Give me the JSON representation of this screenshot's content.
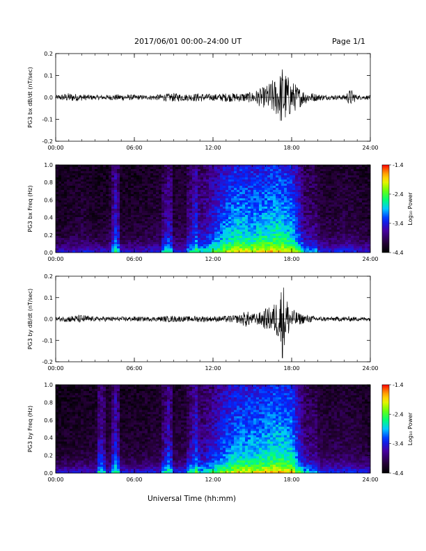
{
  "header": {
    "title": "2017/06/01   00:00–24:00 UT",
    "page": "Page 1/1"
  },
  "xaxis": {
    "title": "Universal Time (hh:mm)",
    "ticks": [
      "00:00",
      "06:00",
      "12:00",
      "18:00",
      "24:00"
    ],
    "range_hours": [
      0,
      24
    ]
  },
  "colorbar": {
    "title": "Log₁₀ Power",
    "ticks": [
      "-1.4",
      "-2.4",
      "-3.4",
      "-4.4"
    ],
    "range": [
      -4.4,
      -1.4
    ]
  },
  "chart_data": [
    {
      "type": "line",
      "name": "bx-waveform",
      "ylabel": "PG3 bx dB/dt (nT/sec)",
      "ylim": [
        -0.2,
        0.2
      ],
      "yticks": [
        "0.2",
        "0.1",
        "0.0",
        "-0.1",
        "-0.2"
      ],
      "x_hours": [
        0,
        1,
        2,
        3,
        4,
        5,
        6,
        7,
        8,
        9,
        10,
        11,
        12,
        13,
        14,
        15,
        15.5,
        16,
        16.5,
        17,
        17.3,
        17.5,
        17.7,
        18,
        18.5,
        19,
        20,
        21,
        22,
        22.5,
        23,
        24
      ],
      "amplitude_envelope": [
        0.01,
        0.02,
        0.015,
        0.01,
        0.012,
        0.015,
        0.012,
        0.01,
        0.015,
        0.02,
        0.015,
        0.02,
        0.015,
        0.02,
        0.02,
        0.025,
        0.04,
        0.05,
        0.08,
        0.09,
        0.15,
        0.12,
        0.1,
        0.08,
        0.05,
        0.03,
        0.015,
        0.01,
        0.012,
        0.04,
        0.01,
        0.01
      ]
    },
    {
      "type": "heatmap",
      "name": "bx-spectrogram",
      "ylabel": "PG3 bx Freq (Hz)",
      "ylim": [
        0,
        1.0
      ],
      "yticks": [
        "1.0",
        "0.8",
        "0.6",
        "0.4",
        "0.2",
        "0.0"
      ],
      "activity_hours": [
        0,
        1,
        2,
        3,
        4,
        4.6,
        5,
        6,
        7,
        8,
        8.7,
        9,
        10,
        10.8,
        11,
        12,
        13,
        14,
        15,
        16,
        17,
        18,
        18.5,
        19,
        20,
        21,
        22,
        23,
        24
      ],
      "activity_level": [
        0.15,
        0.2,
        0.25,
        0.18,
        0.2,
        0.55,
        0.2,
        0.2,
        0.22,
        0.25,
        0.5,
        0.25,
        0.3,
        0.6,
        0.35,
        0.55,
        0.75,
        0.85,
        0.8,
        0.85,
        0.9,
        0.8,
        0.6,
        0.35,
        0.3,
        0.25,
        0.3,
        0.25,
        0.2
      ]
    },
    {
      "type": "line",
      "name": "by-waveform",
      "ylabel": "PG3 by dB/dt (nT/sec)",
      "ylim": [
        -0.2,
        0.2
      ],
      "yticks": [
        "0.2",
        "0.1",
        "0.0",
        "-0.1",
        "-0.2"
      ],
      "x_hours": [
        0,
        1,
        2,
        3,
        4,
        5,
        6,
        7,
        8,
        9,
        10,
        11,
        12,
        13,
        14,
        14.5,
        15,
        15.5,
        16,
        16.5,
        17,
        17.3,
        17.5,
        17.7,
        18,
        18.5,
        19,
        20,
        21,
        22,
        23,
        24
      ],
      "amplitude_envelope": [
        0.01,
        0.015,
        0.02,
        0.01,
        0.012,
        0.01,
        0.012,
        0.01,
        0.012,
        0.015,
        0.012,
        0.015,
        0.012,
        0.015,
        0.02,
        0.04,
        0.025,
        0.03,
        0.05,
        0.06,
        0.1,
        0.19,
        0.13,
        0.09,
        0.05,
        0.03,
        0.02,
        0.012,
        0.01,
        0.012,
        0.01,
        0.01
      ]
    },
    {
      "type": "heatmap",
      "name": "by-spectrogram",
      "ylabel": "PG3 by Freq (Hz)",
      "ylim": [
        0,
        1.0
      ],
      "yticks": [
        "1.0",
        "0.8",
        "0.6",
        "0.4",
        "0.2",
        "0.0"
      ],
      "activity_hours": [
        0,
        1,
        2,
        3,
        3.4,
        4,
        4.6,
        5,
        6,
        7,
        8,
        8.7,
        9,
        10,
        10.8,
        11,
        12,
        13,
        14,
        15,
        16,
        17,
        18,
        18.5,
        19,
        20,
        21,
        22,
        23,
        24
      ],
      "activity_level": [
        0.15,
        0.18,
        0.2,
        0.2,
        0.5,
        0.2,
        0.55,
        0.2,
        0.2,
        0.22,
        0.25,
        0.55,
        0.25,
        0.3,
        0.6,
        0.35,
        0.5,
        0.7,
        0.8,
        0.8,
        0.85,
        0.9,
        0.85,
        0.6,
        0.35,
        0.3,
        0.28,
        0.3,
        0.28,
        0.22
      ]
    }
  ]
}
